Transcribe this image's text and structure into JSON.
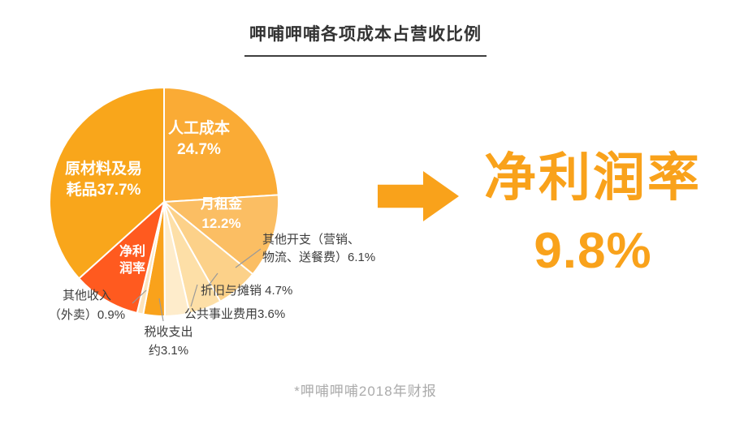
{
  "title": "呷哺呷哺各项成本占营收比例",
  "footnote": "*呷哺呷哺2018年财报",
  "highlight": {
    "label": "净利润率",
    "value": "9.8%",
    "color": "#F9A21B"
  },
  "chart_data": {
    "type": "pie",
    "title": "呷哺呷哺各项成本占营收比例",
    "source_note": "*呷哺呷哺2018年财报",
    "unit": "percent of revenue",
    "direction": "clockwise",
    "start": "top",
    "slices": [
      {
        "id": "labor",
        "label": "人工成本",
        "value": 24.7,
        "color": "#FAAB35"
      },
      {
        "id": "rent",
        "label": "月租金",
        "value": 12.2,
        "color": "#FBBE63"
      },
      {
        "id": "other-expenses",
        "label": "其他开支（营销、物流、送餐费）",
        "value": 6.1,
        "color": "#FCD189"
      },
      {
        "id": "depreciation",
        "label": "折旧与摊销",
        "value": 4.7,
        "color": "#FDDFA7"
      },
      {
        "id": "utilities",
        "label": "公共事业费用",
        "value": 3.6,
        "color": "#FEECCB"
      },
      {
        "id": "tax",
        "label": "税收支出（约）",
        "value": 3.1,
        "color": "#F9A21B"
      },
      {
        "id": "other-income",
        "label": "其他收入（外卖）",
        "value": 0.9,
        "color": "#FDE4BC"
      },
      {
        "id": "net-profit",
        "label": "净利润率",
        "value": 9.8,
        "color": "#FF5A1F"
      },
      {
        "id": "raw-materials",
        "label": "原材料及易耗品",
        "value": 37.7,
        "color": "#F9A61B"
      }
    ]
  },
  "pie_labels": {
    "raw_materials": {
      "l1": "原材料及易",
      "l2": "耗品37.7%"
    },
    "labor": {
      "l1": "人工成本",
      "l2": "24.7%"
    },
    "rent": {
      "l1": "月租金",
      "l2": "12.2%"
    },
    "net_profit": {
      "l1": "净利",
      "l2": "润率"
    },
    "other_expenses": {
      "l1": "其他开支（营销、",
      "l2": "物流、送餐费）6.1%"
    },
    "depreciation": "折旧与摊销 4.7%",
    "utilities": "公共事业费用3.6%",
    "tax": {
      "l1": "税收支出",
      "l2": "约3.1%"
    },
    "other_income": {
      "l1": "其他收入",
      "l2": "（外卖）0.9%"
    }
  }
}
